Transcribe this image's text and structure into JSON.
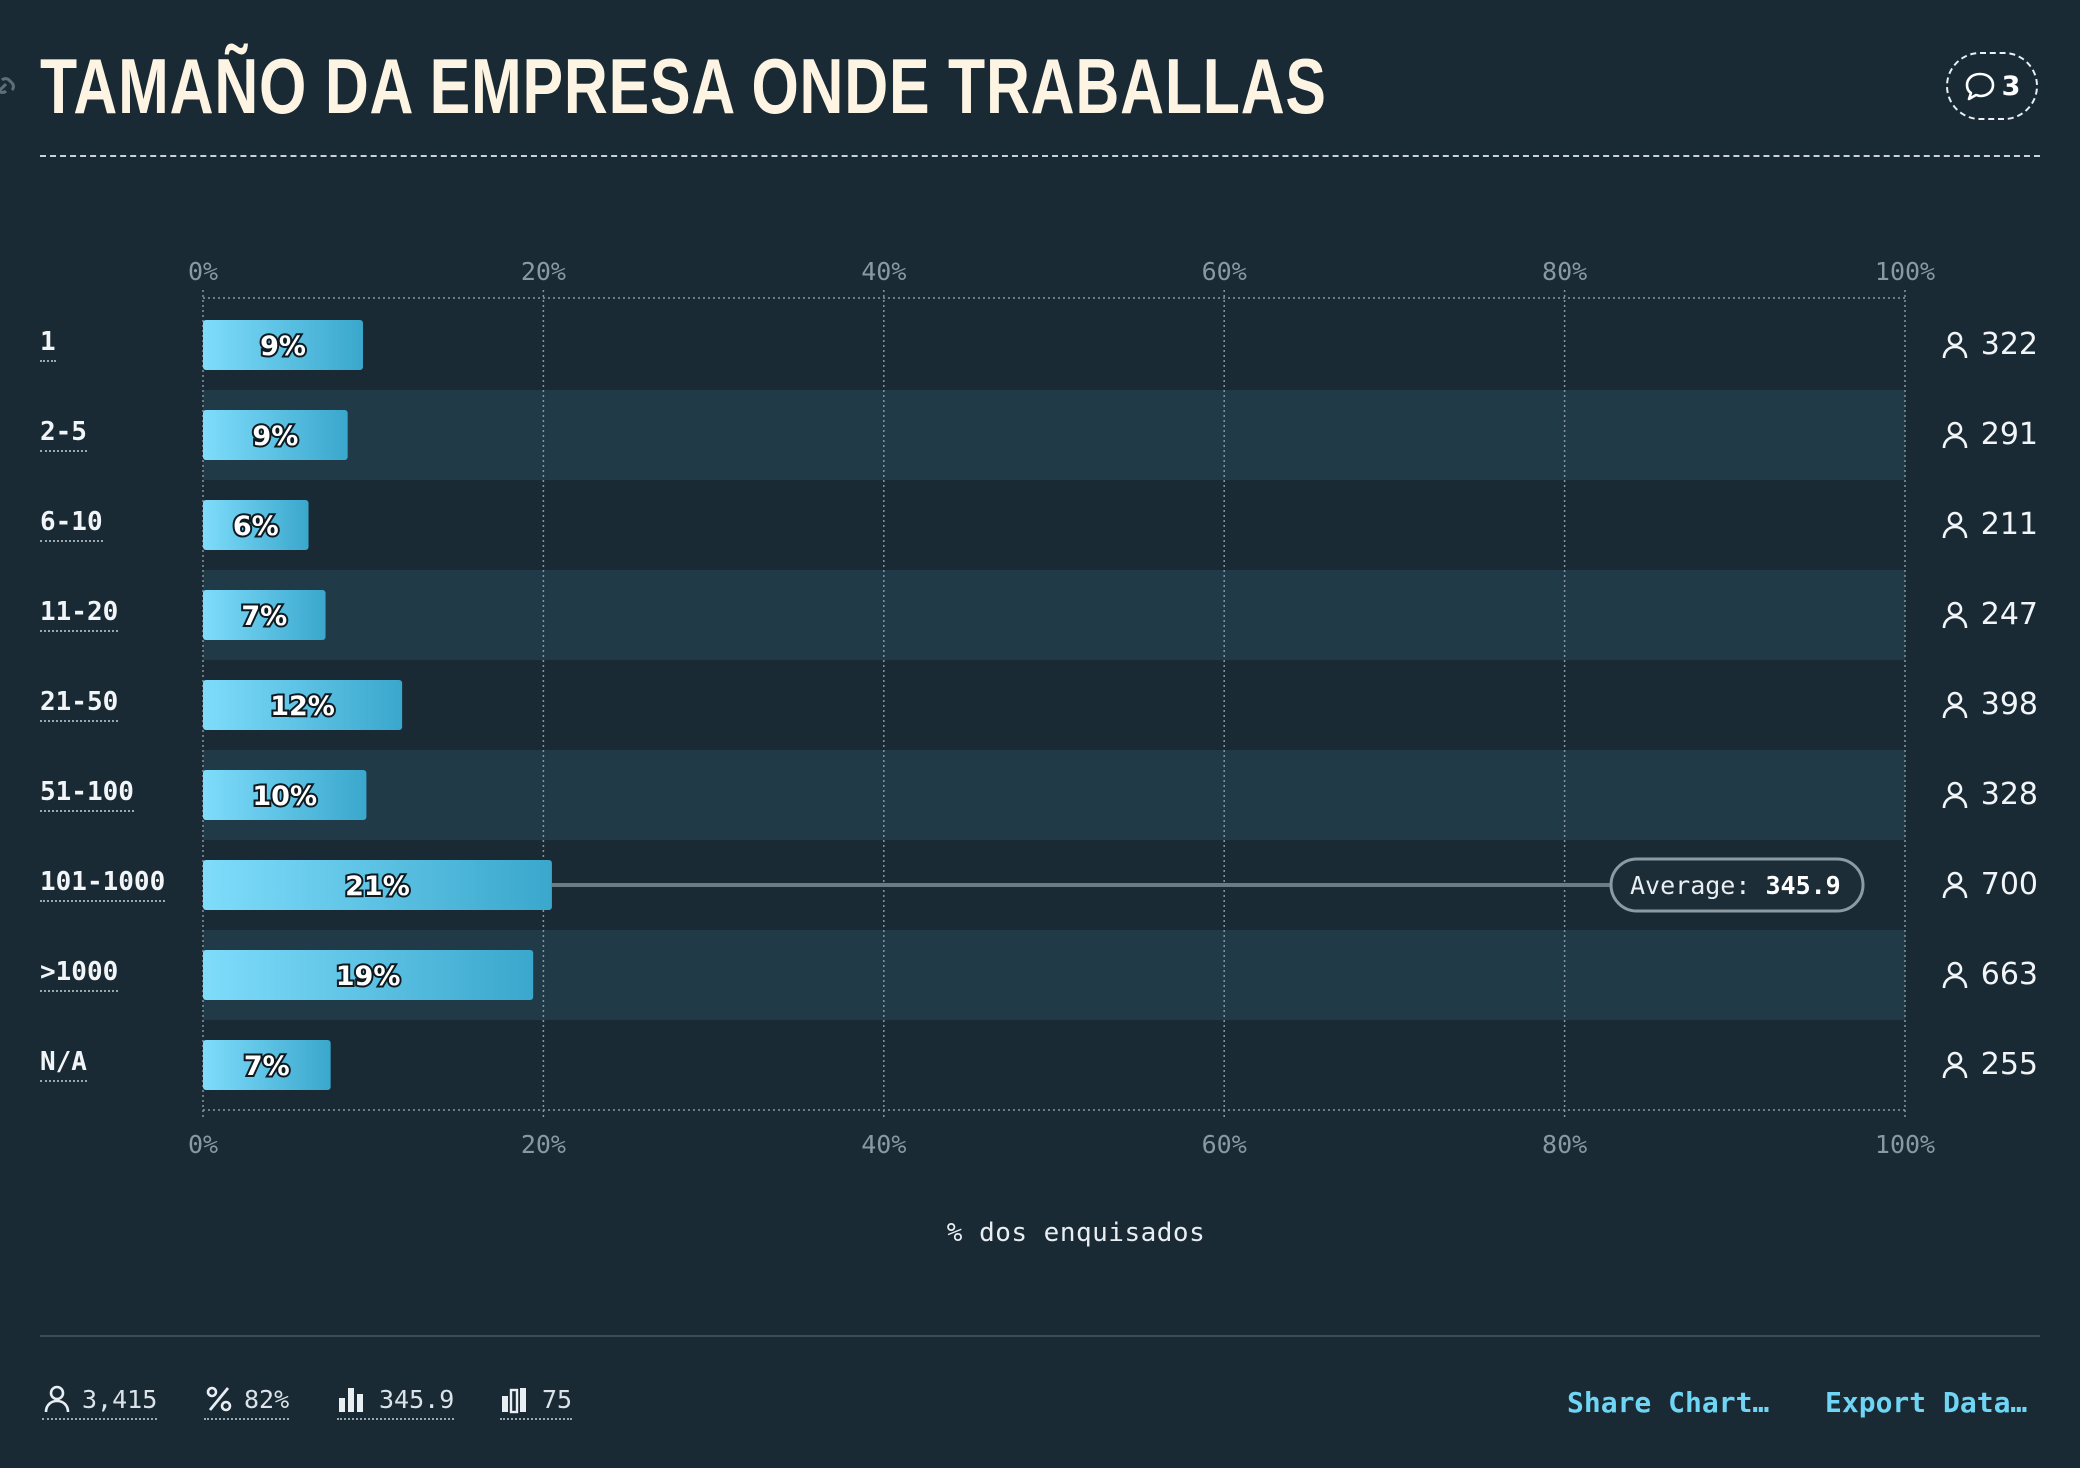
{
  "title": "TAMAÑO DA EMPRESA ONDE TRABALLAS",
  "comments_count": "3",
  "colors": {
    "background": "#192a34",
    "bar_start": "#7fdcfb",
    "bar_end": "#3aa7cc",
    "stripe": "#213a48"
  },
  "chart_data": {
    "type": "bar",
    "orientation": "horizontal",
    "categories": [
      "1",
      "2-5",
      "6-10",
      "11-20",
      "21-50",
      "51-100",
      "101-1000",
      ">1000",
      "N/A"
    ],
    "values": [
      9.4,
      8.5,
      6.2,
      7.2,
      11.7,
      9.6,
      20.5,
      19.4,
      7.5
    ],
    "value_labels": [
      "9%",
      "9%",
      "6%",
      "7%",
      "12%",
      "10%",
      "21%",
      "19%",
      "7%"
    ],
    "counts": [
      "322",
      "291",
      "211",
      "247",
      "398",
      "328",
      "700",
      "663",
      "255"
    ],
    "xlim": [
      0,
      100
    ],
    "ticks": [
      "0%",
      "20%",
      "40%",
      "60%",
      "80%",
      "100%"
    ],
    "tick_values": [
      0,
      20,
      40,
      60,
      80,
      100
    ],
    "xlabel": "% dos enquisados",
    "average": {
      "label": "Average:",
      "value": "345.9",
      "row": "101-1000"
    },
    "grid": true
  },
  "footer": {
    "respondents": "3,415",
    "percent": "82%",
    "average": "345.9",
    "median": "75",
    "share_label": "Share Chart…",
    "export_label": "Export Data…"
  }
}
